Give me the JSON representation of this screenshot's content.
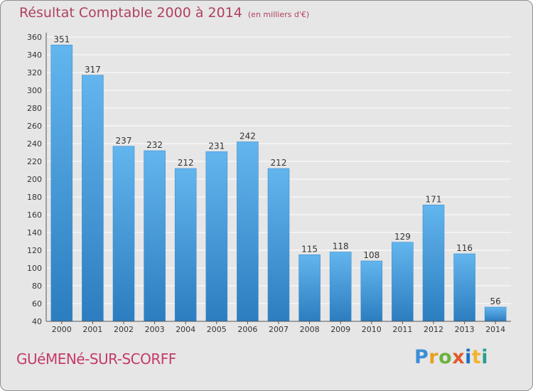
{
  "header": {
    "title": "Résultat Comptable 2000 à 2014",
    "subtitle": "(en milliers d'€)"
  },
  "footer": {
    "place": "GUéMENé-SUR-SCORFF",
    "logo_text": "Proxiti",
    "logo_colors": [
      "#3a8fd6",
      "#e8a020",
      "#6cb33f",
      "#e05a2b",
      "#1b6fc0",
      "#f2b430",
      "#2a9d8f"
    ]
  },
  "chart_data": {
    "type": "bar",
    "title": "Résultat Comptable 2000 à 2014",
    "subtitle": "(en milliers d'€)",
    "categories": [
      "2000",
      "2001",
      "2002",
      "2003",
      "2004",
      "2005",
      "2006",
      "2007",
      "2008",
      "2009",
      "2010",
      "2011",
      "2012",
      "2013",
      "2014"
    ],
    "values": [
      351,
      317,
      237,
      232,
      212,
      231,
      242,
      212,
      115,
      118,
      108,
      129,
      171,
      116,
      56
    ],
    "ylim": [
      40,
      360
    ],
    "yticks": [
      40,
      60,
      80,
      100,
      120,
      140,
      160,
      180,
      200,
      220,
      240,
      260,
      280,
      300,
      320,
      340,
      360
    ],
    "grid": true,
    "xlabel": "",
    "ylabel": "",
    "colors": {
      "bar_top": "#63b5ee",
      "bar_bottom": "#2c7dbf",
      "bar_edge": "#3d8fd0",
      "grid": "#ffffff",
      "axis": "#555555",
      "text": "#333333"
    }
  }
}
